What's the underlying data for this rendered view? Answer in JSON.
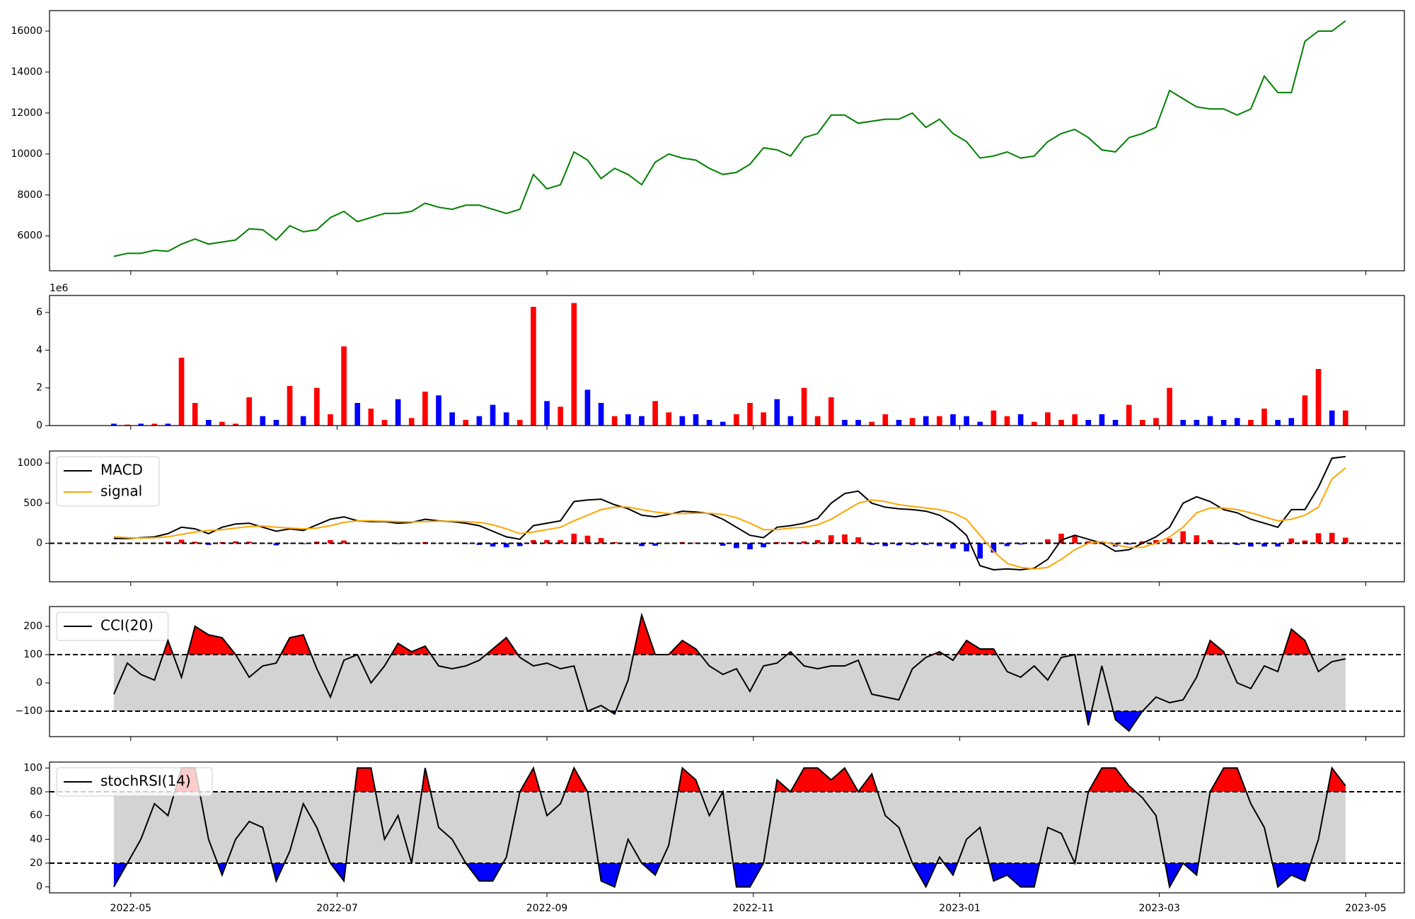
{
  "chart_data": [
    {
      "type": "line",
      "color": "green",
      "values": [
        5000,
        5150,
        5150,
        5300,
        5250,
        5600,
        5850,
        5600,
        5700,
        5800,
        6350,
        6300,
        5800,
        6500,
        6200,
        6300,
        6900,
        7200,
        6700,
        6900,
        7100,
        7100,
        7200,
        7600,
        7400,
        7300,
        7500,
        7500,
        7300,
        7100,
        7300,
        9000,
        8300,
        8500,
        10100,
        9700,
        8800,
        9300,
        9000,
        8500,
        9600,
        10000,
        9800,
        9700,
        9300,
        9000,
        9100,
        9500,
        10300,
        10200,
        9900,
        10800,
        11000,
        11900,
        11900,
        11500,
        11600,
        11700,
        11700,
        12000,
        11300,
        11700,
        11000,
        10600,
        9800,
        9900,
        10100,
        9800,
        9900,
        10600,
        11000,
        11200,
        10800,
        10200,
        10100,
        10800,
        11000,
        11300,
        13100,
        12700,
        12300,
        12200,
        12200,
        11900,
        12200,
        13800,
        13000,
        13000,
        15500,
        16000,
        16000,
        16500
      ],
      "ylim": [
        4300,
        17000
      ],
      "yticks": [
        6000,
        8000,
        10000,
        12000,
        14000,
        16000
      ]
    },
    {
      "type": "bar",
      "offset_text": "1e6",
      "values": [
        0.1,
        0.05,
        0.1,
        0.1,
        0.1,
        3.6,
        1.2,
        0.3,
        0.2,
        0.1,
        1.5,
        0.5,
        0.3,
        2.1,
        0.5,
        2.0,
        0.6,
        4.2,
        1.2,
        0.9,
        0.3,
        1.4,
        0.4,
        1.8,
        1.6,
        0.7,
        0.3,
        0.5,
        1.1,
        0.7,
        0.3,
        6.3,
        1.3,
        1.0,
        6.5,
        1.9,
        1.2,
        0.5,
        0.6,
        0.5,
        1.3,
        0.7,
        0.5,
        0.6,
        0.3,
        0.2,
        0.6,
        1.2,
        0.7,
        1.4,
        0.5,
        2.0,
        0.5,
        1.5,
        0.3,
        0.3,
        0.2,
        0.6,
        0.3,
        0.4,
        0.5,
        0.5,
        0.6,
        0.5,
        0.2,
        0.8,
        0.5,
        0.6,
        0.2,
        0.7,
        0.3,
        0.6,
        0.3,
        0.6,
        0.3,
        1.1,
        0.3,
        0.4,
        2.0,
        0.3,
        0.3,
        0.5,
        0.3,
        0.4,
        0.3,
        0.9,
        0.3,
        0.4,
        1.6,
        3.0,
        0.8,
        0.8
      ],
      "colors": [
        "blue",
        "red",
        "blue",
        "red",
        "blue",
        "red",
        "red",
        "blue",
        "red",
        "red",
        "red",
        "blue",
        "blue",
        "red",
        "blue",
        "red",
        "red",
        "red",
        "blue",
        "red",
        "red",
        "blue",
        "red",
        "red",
        "blue",
        "blue",
        "red",
        "blue",
        "blue",
        "blue",
        "red",
        "red",
        "blue",
        "red",
        "red",
        "blue",
        "blue",
        "red",
        "blue",
        "blue",
        "red",
        "red",
        "blue",
        "blue",
        "blue",
        "blue",
        "red",
        "red",
        "red",
        "blue",
        "blue",
        "red",
        "red",
        "red",
        "blue",
        "blue",
        "red",
        "red",
        "blue",
        "red",
        "blue",
        "red",
        "blue",
        "blue",
        "blue",
        "red",
        "red",
        "blue",
        "red",
        "red",
        "red",
        "red",
        "blue",
        "blue",
        "blue",
        "red",
        "red",
        "red",
        "red",
        "blue",
        "blue",
        "blue",
        "blue",
        "blue",
        "red",
        "red",
        "blue",
        "blue",
        "red",
        "red",
        "blue",
        "red"
      ],
      "ylim": [
        0,
        6.9
      ],
      "yticks": [
        0,
        2,
        4,
        6
      ]
    },
    {
      "type": "macd",
      "legend": "upper left",
      "hlines": [
        0
      ],
      "series": [
        {
          "name": "MACD",
          "color": "black",
          "values": [
            60,
            60,
            70,
            80,
            120,
            200,
            180,
            120,
            200,
            240,
            250,
            200,
            150,
            180,
            160,
            230,
            300,
            330,
            280,
            270,
            270,
            250,
            260,
            300,
            280,
            270,
            250,
            220,
            150,
            80,
            50,
            220,
            250,
            280,
            520,
            540,
            550,
            480,
            430,
            350,
            330,
            360,
            400,
            390,
            370,
            300,
            200,
            100,
            70,
            200,
            220,
            250,
            310,
            500,
            620,
            650,
            500,
            450,
            430,
            420,
            400,
            350,
            250,
            100,
            -280,
            -330,
            -320,
            -330,
            -310,
            -200,
            40,
            100,
            50,
            0,
            -100,
            -80,
            0,
            80,
            200,
            500,
            580,
            520,
            420,
            380,
            300,
            250,
            200,
            420,
            420,
            700,
            1060,
            1080
          ]
        },
        {
          "name": "signal",
          "color": "orange",
          "values": [
            80,
            70,
            65,
            70,
            80,
            110,
            140,
            160,
            170,
            190,
            210,
            215,
            200,
            190,
            180,
            190,
            220,
            260,
            280,
            280,
            275,
            270,
            265,
            270,
            275,
            275,
            270,
            260,
            230,
            180,
            120,
            140,
            170,
            200,
            280,
            350,
            420,
            450,
            450,
            420,
            390,
            370,
            370,
            375,
            375,
            360,
            320,
            250,
            170,
            170,
            190,
            200,
            230,
            300,
            400,
            500,
            540,
            520,
            480,
            460,
            440,
            420,
            380,
            300,
            100,
            -100,
            -250,
            -300,
            -320,
            -300,
            -200,
            -80,
            0,
            20,
            -20,
            -50,
            -50,
            0,
            80,
            200,
            380,
            440,
            440,
            420,
            380,
            330,
            280,
            300,
            350,
            450,
            800,
            940
          ]
        }
      ],
      "histogram": {
        "up_color": "red",
        "down_color": "blue",
        "values": [
          -10,
          -5,
          3,
          5,
          20,
          45,
          20,
          -20,
          15,
          25,
          20,
          -8,
          -25,
          -5,
          -10,
          20,
          40,
          35,
          0,
          -5,
          -3,
          -10,
          -3,
          15,
          3,
          -3,
          -10,
          -20,
          -40,
          -50,
          -35,
          40,
          40,
          40,
          120,
          95,
          65,
          15,
          -10,
          -35,
          -30,
          -5,
          15,
          8,
          -3,
          -30,
          -60,
          -75,
          -50,
          15,
          15,
          25,
          40,
          100,
          110,
          75,
          -20,
          -35,
          -25,
          -20,
          -20,
          -35,
          -65,
          -100,
          -190,
          -115,
          -35,
          -15,
          5,
          50,
          120,
          90,
          25,
          -10,
          -40,
          -15,
          25,
          40,
          60,
          150,
          100,
          40,
          -10,
          -20,
          -40,
          -40,
          -40,
          60,
          35,
          125,
          130,
          70
        ]
      },
      "ylim": [
        -480,
        1150
      ],
      "yticks": [
        0,
        500,
        1000
      ]
    },
    {
      "type": "oscillator",
      "legend": "upper left",
      "hlines": [
        -100,
        100
      ],
      "band_color": "lightgray",
      "upper_color": "red",
      "lower_color": "blue",
      "series": [
        {
          "name": "CCI(20)",
          "color": "black",
          "values": [
            -40,
            70,
            30,
            10,
            150,
            20,
            200,
            170,
            160,
            100,
            20,
            60,
            70,
            160,
            170,
            50,
            -50,
            80,
            100,
            0,
            60,
            140,
            110,
            130,
            60,
            50,
            60,
            80,
            120,
            160,
            90,
            60,
            70,
            50,
            60,
            -100,
            -80,
            -110,
            10,
            240,
            100,
            100,
            150,
            120,
            60,
            30,
            50,
            -30,
            60,
            70,
            110,
            60,
            50,
            60,
            60,
            80,
            -40,
            -50,
            -60,
            50,
            90,
            110,
            80,
            150,
            120,
            120,
            40,
            20,
            60,
            10,
            90,
            100,
            -150,
            60,
            -130,
            -170,
            -100,
            -50,
            -70,
            -60,
            20,
            150,
            110,
            0,
            -20,
            60,
            40,
            190,
            150,
            40,
            75,
            85
          ]
        }
      ],
      "ylim": [
        -190,
        270
      ],
      "yticks": [
        {
          "value": -100,
          "label": "−100"
        },
        0,
        100,
        200
      ]
    },
    {
      "type": "oscillator",
      "legend": "upper left",
      "hlines": [
        20,
        80
      ],
      "band_color": "lightgray",
      "upper_color": "red",
      "lower_color": "blue",
      "series": [
        {
          "name": "stochRSI(14)",
          "color": "black",
          "values": [
            0,
            20,
            40,
            70,
            60,
            100,
            100,
            40,
            10,
            40,
            55,
            50,
            5,
            30,
            70,
            50,
            20,
            5,
            100,
            100,
            40,
            60,
            20,
            100,
            50,
            40,
            20,
            5,
            5,
            25,
            80,
            100,
            60,
            70,
            100,
            80,
            5,
            0,
            40,
            20,
            10,
            35,
            100,
            90,
            60,
            80,
            0,
            0,
            20,
            90,
            80,
            100,
            100,
            90,
            100,
            80,
            95,
            60,
            50,
            20,
            0,
            25,
            10,
            40,
            50,
            5,
            10,
            0,
            0,
            50,
            45,
            20,
            80,
            100,
            100,
            85,
            75,
            60,
            0,
            20,
            10,
            80,
            100,
            100,
            70,
            50,
            0,
            10,
            5,
            40,
            100,
            85
          ]
        }
      ],
      "ylim": [
        -5,
        105
      ],
      "yticks": [
        0,
        20,
        40,
        60,
        80,
        100
      ],
      "xlim": [
        -4.75,
        95.35
      ],
      "xticks": [
        {
          "value": 1.25,
          "label": "2022-05"
        },
        {
          "value": 16.5,
          "label": "2022-07"
        },
        {
          "value": 32,
          "label": "2022-09"
        },
        {
          "value": 47.25,
          "label": "2022-11"
        },
        {
          "value": 62.5,
          "label": "2023-01"
        },
        {
          "value": 77.25,
          "label": "2023-03"
        },
        {
          "value": 92.5,
          "label": "2023-05"
        }
      ]
    }
  ]
}
